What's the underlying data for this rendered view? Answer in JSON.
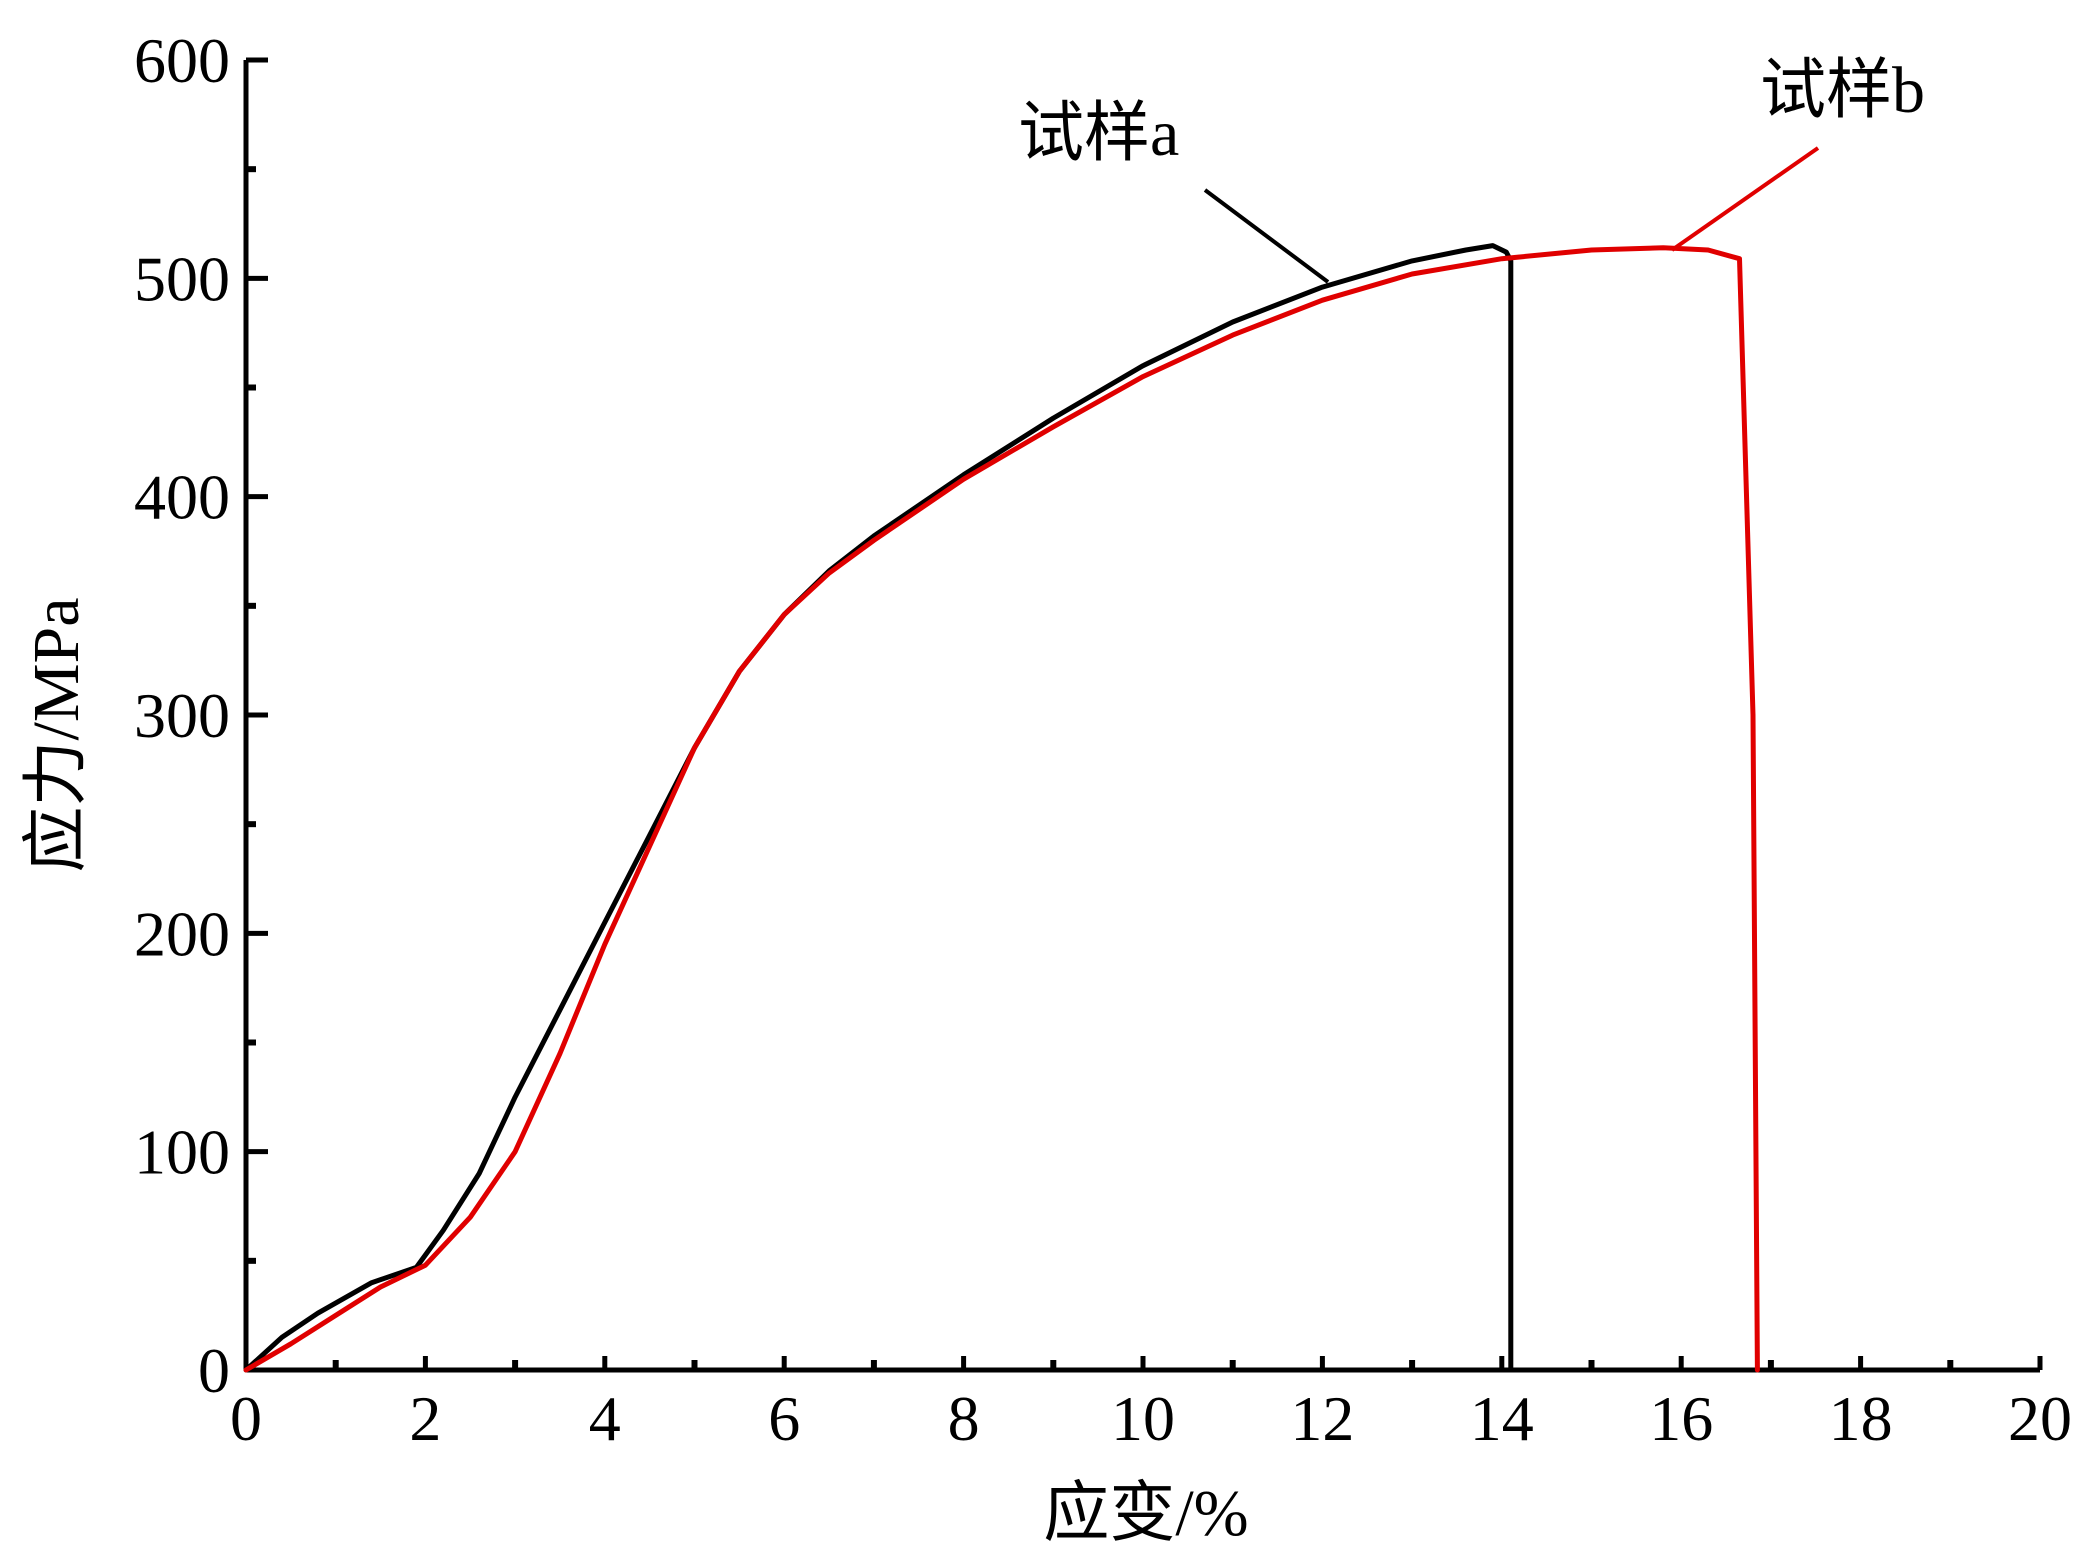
{
  "chart_data": {
    "type": "line",
    "title": "",
    "xlabel": "应变/%",
    "ylabel": "应力/MPa",
    "xlim": [
      0,
      20
    ],
    "ylim": [
      0,
      600
    ],
    "x_ticks": [
      0,
      2,
      4,
      6,
      8,
      10,
      12,
      14,
      16,
      18,
      20
    ],
    "y_ticks": [
      0,
      100,
      200,
      300,
      400,
      500,
      600
    ],
    "grid": false,
    "legend": "none",
    "series": [
      {
        "name": "试样a",
        "color": "#000000",
        "x": [
          0,
          0.4,
          0.8,
          1.4,
          1.9,
          2.2,
          2.6,
          3.0,
          3.5,
          4.0,
          4.5,
          5.0,
          5.5,
          6.0,
          6.5,
          7.0,
          8.0,
          9.0,
          10.0,
          11.0,
          12.0,
          13.0,
          13.6,
          13.9,
          14.05,
          14.1,
          14.1
        ],
        "y": [
          0,
          15,
          26,
          40,
          47,
          64,
          90,
          125,
          165,
          205,
          245,
          285,
          320,
          346,
          366,
          382,
          410,
          436,
          460,
          480,
          496,
          508,
          513,
          515,
          512,
          508,
          0
        ]
      },
      {
        "name": "试样b",
        "color": "#e00000",
        "x": [
          0,
          0.5,
          1.0,
          1.5,
          2.0,
          2.5,
          3.0,
          3.5,
          4.0,
          4.5,
          5.0,
          5.5,
          6.0,
          6.5,
          7.0,
          8.0,
          9.0,
          10.0,
          11.0,
          12.0,
          13.0,
          14.0,
          15.0,
          15.8,
          16.3,
          16.65,
          16.8,
          16.85
        ],
        "y": [
          0,
          12,
          25,
          38,
          48,
          70,
          100,
          145,
          195,
          240,
          285,
          320,
          346,
          365,
          380,
          408,
          432,
          455,
          474,
          490,
          502,
          509,
          513,
          514,
          513,
          509,
          300,
          0
        ]
      }
    ]
  }
}
